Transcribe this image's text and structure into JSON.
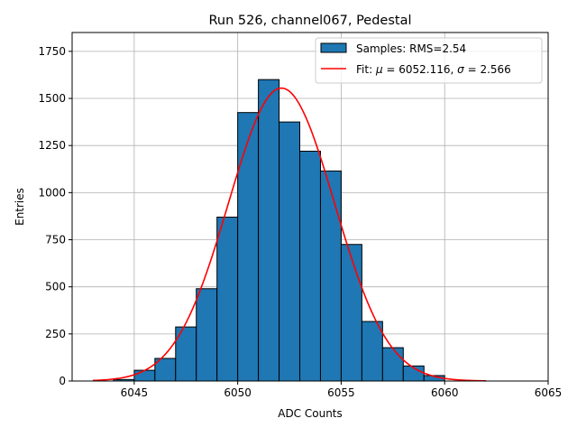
{
  "chart_data": {
    "type": "bar",
    "title": "Run 526, channel067, Pedestal",
    "xlabel": "ADC Counts",
    "ylabel": "Entries",
    "xlim": [
      6042,
      6065
    ],
    "ylim": [
      0,
      1850
    ],
    "xticks": [
      6045,
      6050,
      6055,
      6060,
      6065
    ],
    "yticks": [
      0,
      250,
      500,
      750,
      1000,
      1250,
      1500,
      1750
    ],
    "ytick_labels": [
      "0",
      "250",
      "500",
      "750",
      "1000",
      "1250",
      "1500",
      "1750"
    ],
    "grid": true,
    "legend_position": "top-right",
    "bin_width": 1,
    "bin_edges_start": [
      6044,
      6045,
      6046,
      6047,
      6048,
      6049,
      6050,
      6051,
      6052,
      6053,
      6054,
      6055,
      6056,
      6057,
      6058,
      6059
    ],
    "values": [
      8,
      57,
      120,
      287,
      490,
      870,
      1425,
      1600,
      1375,
      1220,
      1115,
      725,
      316,
      177,
      80,
      29
    ],
    "bar_color": "#1f77b4",
    "fit": {
      "mu": 6052.116,
      "sigma": 2.566,
      "amplitude": 1555,
      "range": [
        6043,
        6062
      ],
      "color": "#ff0000"
    },
    "legend": [
      {
        "label": "Samples: RMS=2.54",
        "kind": "patch"
      },
      {
        "label_prefix": "Fit: ",
        "mu_symbol": "μ",
        "mu_text": " = 6052.116, ",
        "sigma_symbol": "σ",
        "sigma_text": " = 2.566",
        "kind": "line"
      }
    ]
  }
}
